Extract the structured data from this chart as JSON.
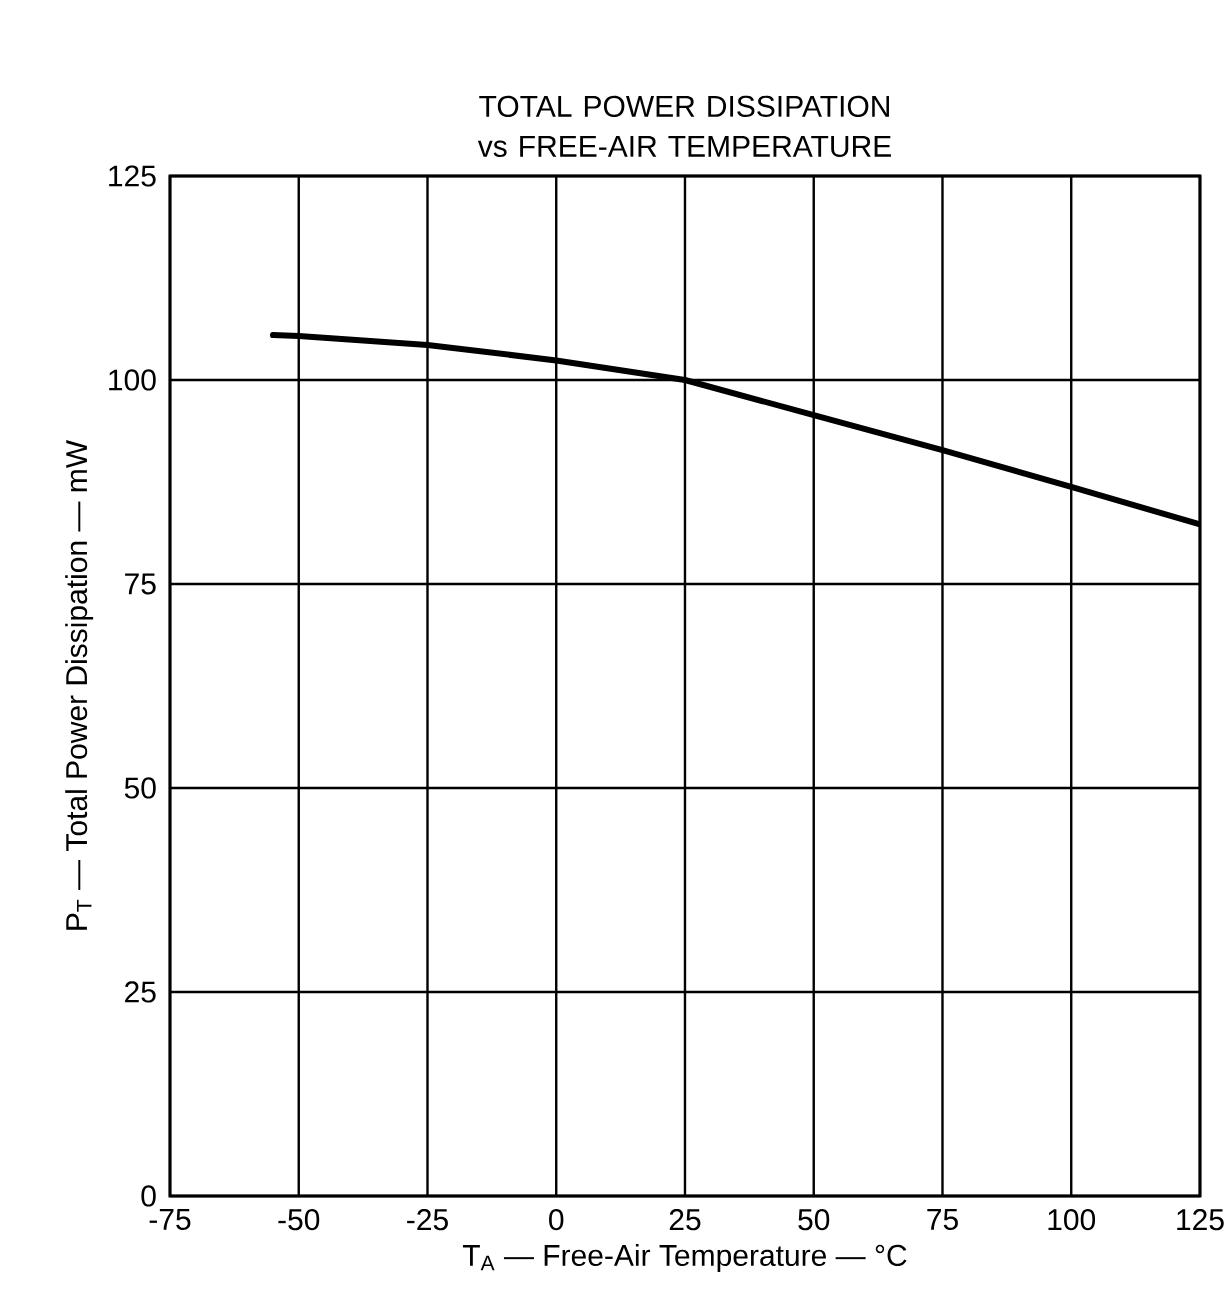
{
  "chart_data": {
    "type": "line",
    "title": "TOTAL POWER DISSIPATION vs FREE-AIR TEMPERATURE",
    "xlabel": "T$_{A}$ — Free-Air Temperature — °C",
    "ylabel": "P$_{T}$ — Total Power Dissipation — mW",
    "x": [
      -55,
      -50,
      -25,
      0,
      25,
      50,
      75,
      100,
      125
    ],
    "series": [
      {
        "color": "#000000",
        "values": [
          105.5,
          105.4,
          104.3,
          102.4,
          100,
          95.7,
          91.4,
          86.9,
          82.3
        ]
      }
    ],
    "xlim": [
      -75,
      125
    ],
    "ylim": [
      0,
      125
    ],
    "xticks": [
      -75,
      -50,
      -25,
      0,
      25,
      50,
      75,
      100,
      125
    ],
    "yticks": [
      0,
      25,
      50,
      75,
      100,
      125
    ],
    "grid": true,
    "marker": "none",
    "line_style": "solid"
  }
}
